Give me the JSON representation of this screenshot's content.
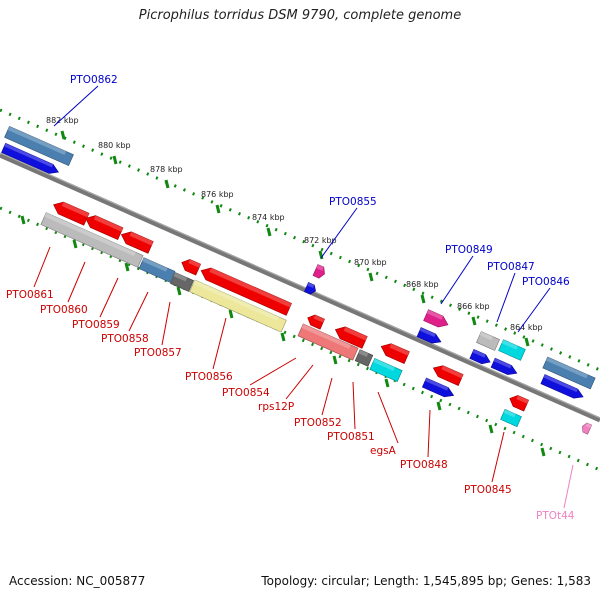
{
  "title": "Picrophilus torridus DSM 9790, complete genome",
  "footer": {
    "accession": "Accession: NC_005877",
    "summary": "Topology: circular; Length: 1,545,895 bp; Genes: 1,583"
  },
  "colors": {
    "red": "#ee0000",
    "blue": "#1010dd",
    "steel": "#4a7fb0",
    "grey": "#bbbbbb",
    "darkgrey": "#666666",
    "khaki": "#ece79a",
    "salmon": "#ee7777",
    "magenta": "#e0208a",
    "cyan": "#00d8e0",
    "pink": "#f080c0",
    "dots": "#118811",
    "axis": "#777777",
    "label_blue": "#0000cc",
    "label_red": "#cc0000",
    "label_pink": "#f080c0"
  },
  "ticks": [
    "882 kbp",
    "880 kbp",
    "878 kbp",
    "876 kbp",
    "874 kbp",
    "872 kbp",
    "870 kbp",
    "868 kbp",
    "866 kbp",
    "864 kbp"
  ],
  "gene_labels": [
    {
      "name": "PTO0862",
      "color": "label_blue"
    },
    {
      "name": "PTO0855",
      "color": "label_blue"
    },
    {
      "name": "PTO0849",
      "color": "label_blue"
    },
    {
      "name": "PTO0847",
      "color": "label_blue"
    },
    {
      "name": "PTO0846",
      "color": "label_blue"
    },
    {
      "name": "PTO0861",
      "color": "label_red"
    },
    {
      "name": "PTO0860",
      "color": "label_red"
    },
    {
      "name": "PTO0859",
      "color": "label_red"
    },
    {
      "name": "PTO0858",
      "color": "label_red"
    },
    {
      "name": "PTO0857",
      "color": "label_red"
    },
    {
      "name": "PTO0856",
      "color": "label_red"
    },
    {
      "name": "PTO0854",
      "color": "label_red"
    },
    {
      "name": "rps12P",
      "color": "label_red"
    },
    {
      "name": "PTO0852",
      "color": "label_red"
    },
    {
      "name": "PTO0851",
      "color": "label_red"
    },
    {
      "name": "egsA",
      "color": "label_red"
    },
    {
      "name": "PTO0848",
      "color": "label_red"
    },
    {
      "name": "PTO0845",
      "color": "label_red"
    },
    {
      "name": "PTOt44",
      "color": "label_pink"
    }
  ],
  "features": [
    {
      "name": "PTO0862",
      "strand": "+",
      "color": "steel"
    },
    {
      "name": "PTO0862-cds",
      "strand": "+",
      "color": "blue"
    },
    {
      "name": "PTO0861",
      "strand": "-",
      "color": "grey"
    },
    {
      "name": "PTO0861-cds",
      "strand": "-",
      "color": "red"
    },
    {
      "name": "PTO0860",
      "strand": "-",
      "color": "red"
    },
    {
      "name": "PTO0859",
      "strand": "-",
      "color": "red"
    },
    {
      "name": "PTO0858",
      "strand": "-",
      "color": "steel"
    },
    {
      "name": "PTO0857",
      "strand": "-",
      "color": "darkgrey"
    },
    {
      "name": "PTO0856",
      "strand": "-",
      "color": "khaki"
    },
    {
      "name": "PTO0856-cds",
      "strand": "-",
      "color": "red"
    },
    {
      "name": "PTO0855",
      "strand": "+",
      "color": "magenta"
    },
    {
      "name": "PTO0855-cds",
      "strand": "+",
      "color": "blue"
    },
    {
      "name": "PTO0854",
      "strand": "-",
      "color": "red"
    },
    {
      "name": "rps12P",
      "strand": "-",
      "color": "red"
    },
    {
      "name": "PTO0852",
      "strand": "-",
      "color": "salmon"
    },
    {
      "name": "PTO0852-cds",
      "strand": "-",
      "color": "red"
    },
    {
      "name": "PTO0851",
      "strand": "-",
      "color": "darkgrey"
    },
    {
      "name": "egsA",
      "strand": "-",
      "color": "cyan"
    },
    {
      "name": "egsA-cds",
      "strand": "-",
      "color": "red"
    },
    {
      "name": "PTO0849",
      "strand": "+",
      "color": "magenta"
    },
    {
      "name": "PTO0849-cds",
      "strand": "+",
      "color": "blue"
    },
    {
      "name": "PTO0848",
      "strand": "-",
      "color": "red"
    },
    {
      "name": "PTO0848-cds",
      "strand": "-",
      "color": "blue"
    },
    {
      "name": "PTO0847",
      "strand": "+",
      "color": "grey"
    },
    {
      "name": "PTO0847-cds",
      "strand": "+",
      "color": "blue"
    },
    {
      "name": "PTO0846",
      "strand": "+",
      "color": "cyan"
    },
    {
      "name": "PTO0846-cds",
      "strand": "+",
      "color": "blue"
    },
    {
      "name": "PTO0845",
      "strand": "-",
      "color": "red"
    },
    {
      "name": "PTO0845-rna",
      "strand": "-",
      "color": "cyan"
    },
    {
      "name": "PTO0844",
      "strand": "+",
      "color": "steel"
    },
    {
      "name": "PTO0844-cds",
      "strand": "+",
      "color": "blue"
    },
    {
      "name": "PTOt44",
      "strand": "-",
      "color": "pink"
    }
  ]
}
